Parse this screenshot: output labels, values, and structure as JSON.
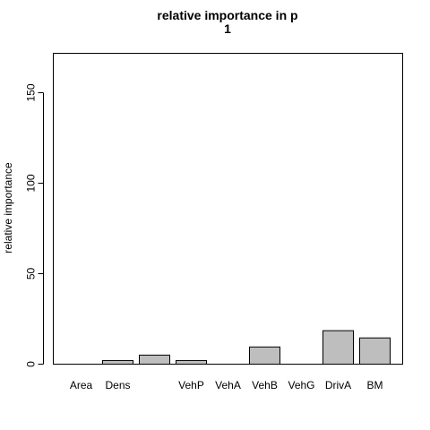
{
  "chart_data": {
    "type": "bar",
    "title": "relative importance in p",
    "subtitle": "1",
    "ylabel": "relative importance",
    "xlabel": "",
    "ylim": [
      0,
      172
    ],
    "yticks": [
      0,
      50,
      100,
      150
    ],
    "bar_color": "#bebebe",
    "categories": [
      "Area",
      "Dens",
      "",
      "VehP",
      "VehA",
      "VehB",
      "VehG",
      "DrivA",
      "BM"
    ],
    "values": [
      0,
      2,
      5,
      2,
      0,
      9.5,
      0,
      18.5,
      14.5
    ],
    "grid": false,
    "legend": "none"
  }
}
